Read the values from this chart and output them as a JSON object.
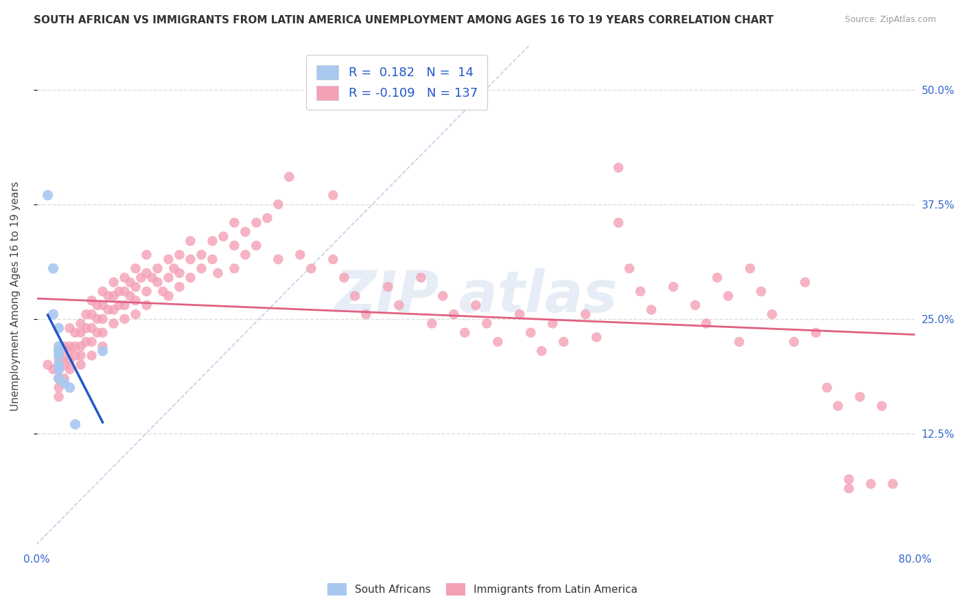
{
  "title": "SOUTH AFRICAN VS IMMIGRANTS FROM LATIN AMERICA UNEMPLOYMENT AMONG AGES 16 TO 19 YEARS CORRELATION CHART",
  "source": "Source: ZipAtlas.com",
  "ylabel": "Unemployment Among Ages 16 to 19 years",
  "xlim": [
    0.0,
    0.8
  ],
  "ylim": [
    0.0,
    0.55
  ],
  "ytick_positions": [
    0.125,
    0.25,
    0.375,
    0.5
  ],
  "ytick_labels": [
    "12.5%",
    "25.0%",
    "37.5%",
    "50.0%"
  ],
  "sa_color": "#a8c8f0",
  "la_color": "#f4a0b5",
  "sa_trend_color": "#2255cc",
  "la_trend_color": "#e06080",
  "diagonal_color": "#c0d0e8",
  "sa_points": [
    [
      0.01,
      0.385
    ],
    [
      0.015,
      0.305
    ],
    [
      0.015,
      0.255
    ],
    [
      0.02,
      0.24
    ],
    [
      0.02,
      0.22
    ],
    [
      0.02,
      0.215
    ],
    [
      0.02,
      0.21
    ],
    [
      0.02,
      0.2
    ],
    [
      0.02,
      0.195
    ],
    [
      0.02,
      0.185
    ],
    [
      0.025,
      0.18
    ],
    [
      0.03,
      0.175
    ],
    [
      0.035,
      0.135
    ],
    [
      0.06,
      0.215
    ]
  ],
  "la_points": [
    [
      0.01,
      0.2
    ],
    [
      0.015,
      0.195
    ],
    [
      0.02,
      0.215
    ],
    [
      0.02,
      0.205
    ],
    [
      0.02,
      0.195
    ],
    [
      0.02,
      0.185
    ],
    [
      0.02,
      0.175
    ],
    [
      0.02,
      0.165
    ],
    [
      0.025,
      0.22
    ],
    [
      0.025,
      0.21
    ],
    [
      0.025,
      0.2
    ],
    [
      0.025,
      0.185
    ],
    [
      0.03,
      0.24
    ],
    [
      0.03,
      0.22
    ],
    [
      0.03,
      0.215
    ],
    [
      0.03,
      0.205
    ],
    [
      0.03,
      0.195
    ],
    [
      0.035,
      0.235
    ],
    [
      0.035,
      0.22
    ],
    [
      0.035,
      0.21
    ],
    [
      0.04,
      0.245
    ],
    [
      0.04,
      0.235
    ],
    [
      0.04,
      0.22
    ],
    [
      0.04,
      0.21
    ],
    [
      0.04,
      0.2
    ],
    [
      0.045,
      0.255
    ],
    [
      0.045,
      0.24
    ],
    [
      0.045,
      0.225
    ],
    [
      0.05,
      0.27
    ],
    [
      0.05,
      0.255
    ],
    [
      0.05,
      0.24
    ],
    [
      0.05,
      0.225
    ],
    [
      0.05,
      0.21
    ],
    [
      0.055,
      0.265
    ],
    [
      0.055,
      0.25
    ],
    [
      0.055,
      0.235
    ],
    [
      0.06,
      0.28
    ],
    [
      0.06,
      0.265
    ],
    [
      0.06,
      0.25
    ],
    [
      0.06,
      0.235
    ],
    [
      0.06,
      0.22
    ],
    [
      0.065,
      0.275
    ],
    [
      0.065,
      0.26
    ],
    [
      0.07,
      0.29
    ],
    [
      0.07,
      0.275
    ],
    [
      0.07,
      0.26
    ],
    [
      0.07,
      0.245
    ],
    [
      0.075,
      0.28
    ],
    [
      0.075,
      0.265
    ],
    [
      0.08,
      0.295
    ],
    [
      0.08,
      0.28
    ],
    [
      0.08,
      0.265
    ],
    [
      0.08,
      0.25
    ],
    [
      0.085,
      0.29
    ],
    [
      0.085,
      0.275
    ],
    [
      0.09,
      0.305
    ],
    [
      0.09,
      0.285
    ],
    [
      0.09,
      0.27
    ],
    [
      0.09,
      0.255
    ],
    [
      0.095,
      0.295
    ],
    [
      0.1,
      0.32
    ],
    [
      0.1,
      0.3
    ],
    [
      0.1,
      0.28
    ],
    [
      0.1,
      0.265
    ],
    [
      0.105,
      0.295
    ],
    [
      0.11,
      0.305
    ],
    [
      0.11,
      0.29
    ],
    [
      0.115,
      0.28
    ],
    [
      0.12,
      0.315
    ],
    [
      0.12,
      0.295
    ],
    [
      0.12,
      0.275
    ],
    [
      0.125,
      0.305
    ],
    [
      0.13,
      0.32
    ],
    [
      0.13,
      0.3
    ],
    [
      0.13,
      0.285
    ],
    [
      0.14,
      0.335
    ],
    [
      0.14,
      0.315
    ],
    [
      0.14,
      0.295
    ],
    [
      0.15,
      0.32
    ],
    [
      0.15,
      0.305
    ],
    [
      0.16,
      0.335
    ],
    [
      0.16,
      0.315
    ],
    [
      0.165,
      0.3
    ],
    [
      0.17,
      0.34
    ],
    [
      0.18,
      0.355
    ],
    [
      0.18,
      0.33
    ],
    [
      0.18,
      0.305
    ],
    [
      0.19,
      0.345
    ],
    [
      0.19,
      0.32
    ],
    [
      0.2,
      0.355
    ],
    [
      0.2,
      0.33
    ],
    [
      0.21,
      0.36
    ],
    [
      0.22,
      0.375
    ],
    [
      0.22,
      0.315
    ],
    [
      0.23,
      0.405
    ],
    [
      0.24,
      0.32
    ],
    [
      0.25,
      0.305
    ],
    [
      0.27,
      0.385
    ],
    [
      0.27,
      0.315
    ],
    [
      0.28,
      0.295
    ],
    [
      0.29,
      0.275
    ],
    [
      0.3,
      0.255
    ],
    [
      0.32,
      0.285
    ],
    [
      0.33,
      0.265
    ],
    [
      0.35,
      0.295
    ],
    [
      0.36,
      0.245
    ],
    [
      0.37,
      0.275
    ],
    [
      0.38,
      0.255
    ],
    [
      0.39,
      0.235
    ],
    [
      0.4,
      0.265
    ],
    [
      0.41,
      0.245
    ],
    [
      0.42,
      0.225
    ],
    [
      0.44,
      0.255
    ],
    [
      0.45,
      0.235
    ],
    [
      0.46,
      0.215
    ],
    [
      0.47,
      0.245
    ],
    [
      0.48,
      0.225
    ],
    [
      0.5,
      0.255
    ],
    [
      0.51,
      0.23
    ],
    [
      0.53,
      0.415
    ],
    [
      0.53,
      0.355
    ],
    [
      0.54,
      0.305
    ],
    [
      0.55,
      0.28
    ],
    [
      0.56,
      0.26
    ],
    [
      0.58,
      0.285
    ],
    [
      0.6,
      0.265
    ],
    [
      0.61,
      0.245
    ],
    [
      0.62,
      0.295
    ],
    [
      0.63,
      0.275
    ],
    [
      0.64,
      0.225
    ],
    [
      0.65,
      0.305
    ],
    [
      0.66,
      0.28
    ],
    [
      0.67,
      0.255
    ],
    [
      0.69,
      0.225
    ],
    [
      0.7,
      0.29
    ],
    [
      0.71,
      0.235
    ],
    [
      0.72,
      0.175
    ],
    [
      0.73,
      0.155
    ],
    [
      0.74,
      0.075
    ],
    [
      0.74,
      0.065
    ],
    [
      0.75,
      0.165
    ],
    [
      0.76,
      0.07
    ],
    [
      0.77,
      0.155
    ],
    [
      0.78,
      0.07
    ]
  ],
  "background_color": "#ffffff",
  "grid_color": "#dddddd",
  "title_fontsize": 11,
  "axis_label_fontsize": 11,
  "tick_label_fontsize": 11,
  "legend_fontsize": 13
}
